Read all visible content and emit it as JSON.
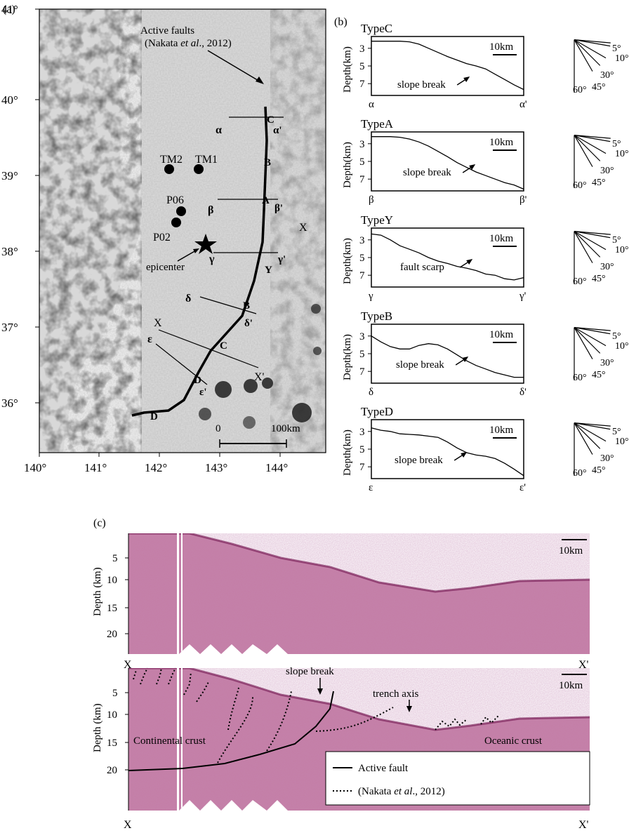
{
  "panel_a": {
    "label": "(a)",
    "lat_ticks": [
      "41°",
      "40°",
      "39°",
      "38°",
      "37°",
      "36°"
    ],
    "lon_ticks": [
      "140°",
      "141°",
      "142°",
      "143°",
      "144°"
    ],
    "active_faults_line1": "Active faults",
    "active_faults_line2_pre": "(Nakata ",
    "active_faults_line2_it": "et al",
    "active_faults_line2_post": "., 2012)",
    "stations": [
      "TM2",
      "TM1",
      "P06",
      "P02"
    ],
    "epicenter": "epicenter",
    "profile_labels": {
      "alpha": "α",
      "alpha_p": "α'",
      "beta": "β",
      "beta_p": "β'",
      "gamma": "γ",
      "gamma_p": "γ'",
      "delta": "δ",
      "delta_p": "δ'",
      "eps": "ε",
      "eps_p": "ε'"
    },
    "type_letters": {
      "c1": "C",
      "b1": "B",
      "a1": "A",
      "y1": "Y",
      "b2": "B",
      "c2": "C",
      "d1": "D",
      "d2": "D"
    },
    "x_label": "X",
    "x_prime_label": "X'",
    "x_east": "X",
    "scale_zero": "0",
    "scale_end": "100km"
  },
  "panel_b": {
    "label": "(b)",
    "axis_label": "Depth(km)",
    "depth_ticks": [
      "3",
      "5",
      "7"
    ],
    "scale_label": "10km",
    "fan_labels": [
      "5°",
      "10°",
      "30°",
      "45°",
      "60°"
    ],
    "profiles": [
      {
        "title": "TypeC",
        "start": "α",
        "end": "α'",
        "annotation": "slope break"
      },
      {
        "title": "TypeA",
        "start": "β",
        "end": "β'",
        "annotation": "slope break"
      },
      {
        "title": "TypeY",
        "start": "γ",
        "end": "γ'",
        "annotation": "fault scarp"
      },
      {
        "title": "TypeB",
        "start": "δ",
        "end": "δ'",
        "annotation": "slope break"
      },
      {
        "title": "TypeD",
        "start": "ε",
        "end": "ε'",
        "annotation": "slope break"
      }
    ]
  },
  "panel_c": {
    "label": "(c)",
    "axis_label": "Depth (km)",
    "depth_ticks": [
      "5",
      "10",
      "15",
      "20"
    ],
    "scale_label": "10km",
    "x_start": "X",
    "x_end": "X'",
    "slope_break": "slope break",
    "trench_axis": "trench axis",
    "continental": "Continental crust",
    "oceanic": "Oceanic crust",
    "legend_active": "Active fault",
    "legend_nakata_pre": "(Nakata ",
    "legend_nakata_it": "et al",
    "legend_nakata_post": "., 2012)"
  },
  "colors": {
    "seismic_bg": "#c77aa6",
    "seismic_light": "#e2a8c7",
    "map_land": "#f0f0f0",
    "map_dark": "#2a2a2a"
  }
}
